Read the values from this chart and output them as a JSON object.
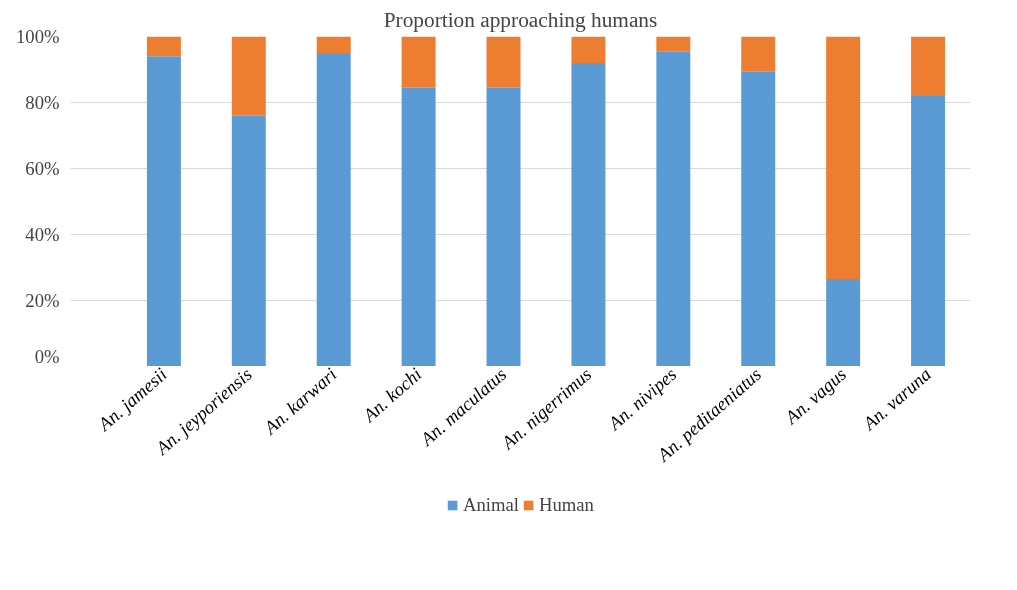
{
  "chart_data": {
    "type": "bar",
    "title": "Proportion approaching humans",
    "stacked": true,
    "categories": [
      "An. jamesii",
      "An. jeyporiensis",
      "An. karwari",
      "An. kochi",
      "An. maculatus",
      "An. nigerrimus",
      "An. nivipes",
      "An. peditaeniatus",
      "An. vagus",
      "An. varuna"
    ],
    "series": [
      {
        "name": "Animal",
        "color": "#5b9bd5",
        "values": [
          94,
          76,
          95,
          84.5,
          84.5,
          92,
          95.5,
          89.5,
          26.5,
          82
        ]
      },
      {
        "name": "Human",
        "color": "#ed7d31",
        "values": [
          6,
          24,
          5,
          15.5,
          15.5,
          8,
          4.5,
          10.5,
          73.5,
          18
        ]
      }
    ],
    "ylim": [
      0,
      100
    ],
    "yticks": [
      {
        "value": 0,
        "label": "0%"
      },
      {
        "value": 20,
        "label": "20%"
      },
      {
        "value": 40,
        "label": "40%"
      },
      {
        "value": 60,
        "label": "60%"
      },
      {
        "value": 80,
        "label": "80%"
      },
      {
        "value": 100,
        "label": "100%"
      }
    ],
    "grid": "y",
    "legend": "bottom"
  }
}
